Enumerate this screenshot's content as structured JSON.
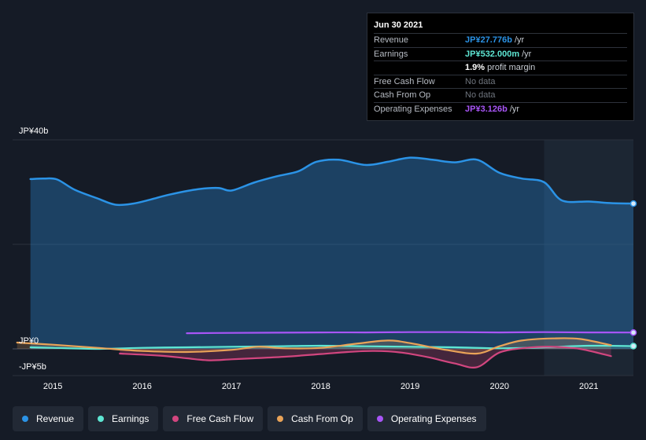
{
  "chart_data": {
    "type": "area",
    "title": "",
    "currency_unit": "JP¥ billions",
    "y_axis_labels": {
      "top": "JP¥40b",
      "zero": "JP¥0",
      "bottom": "-JP¥5b"
    },
    "ylim": [
      -5,
      40
    ],
    "x_tick_labels": [
      "2015",
      "2016",
      "2017",
      "2018",
      "2019",
      "2020",
      "2021"
    ],
    "x_range": [
      2014.55,
      2021.5
    ],
    "forecast_start": 2020.5,
    "series": [
      {
        "name": "Revenue",
        "color": "#2b93e6",
        "x": [
          2014.75,
          2014.9,
          2015.05,
          2015.25,
          2015.5,
          2015.7,
          2015.9,
          2016.1,
          2016.3,
          2016.6,
          2016.85,
          2017.0,
          2017.25,
          2017.5,
          2017.75,
          2017.95,
          2018.2,
          2018.5,
          2018.75,
          2019.0,
          2019.25,
          2019.5,
          2019.75,
          2020.0,
          2020.25,
          2020.5,
          2020.7,
          2021.0,
          2021.25,
          2021.5
        ],
        "values": [
          32.5,
          32.6,
          32.4,
          30.4,
          28.8,
          27.6,
          27.8,
          28.6,
          29.5,
          30.5,
          30.8,
          30.3,
          31.8,
          33.0,
          34.0,
          35.8,
          36.2,
          35.2,
          35.8,
          36.6,
          36.2,
          35.7,
          36.2,
          33.7,
          32.6,
          31.9,
          28.4,
          28.2,
          27.9,
          27.8
        ]
      },
      {
        "name": "Earnings",
        "color": "#5ee6d3",
        "x": [
          2014.75,
          2015.0,
          2015.5,
          2016.0,
          2016.5,
          2017.0,
          2017.5,
          2018.0,
          2018.5,
          2019.0,
          2019.5,
          2020.0,
          2020.5,
          2021.0,
          2021.5
        ],
        "values": [
          0.3,
          0.2,
          0.0,
          0.2,
          0.3,
          0.4,
          0.5,
          0.6,
          0.5,
          0.4,
          0.3,
          0.1,
          0.3,
          0.6,
          0.53
        ]
      },
      {
        "name": "Free Cash Flow",
        "color": "#d2467f",
        "x": [
          2015.75,
          2016.2,
          2016.5,
          2016.75,
          2017.0,
          2017.25,
          2017.6,
          2018.0,
          2018.3,
          2018.6,
          2018.9,
          2019.2,
          2019.5,
          2019.75,
          2020.0,
          2020.3,
          2020.6,
          2020.9,
          2021.25
        ],
        "values": [
          -0.9,
          -1.3,
          -1.8,
          -2.2,
          -2.0,
          -1.8,
          -1.5,
          -1.0,
          -0.6,
          -0.4,
          -0.7,
          -1.6,
          -2.8,
          -3.5,
          -0.7,
          0.2,
          0.4,
          0.0,
          -1.4
        ]
      },
      {
        "name": "Cash From Op",
        "color": "#e9a358",
        "x": [
          2014.6,
          2015.0,
          2015.5,
          2016.0,
          2016.5,
          2017.0,
          2017.3,
          2017.6,
          2018.0,
          2018.4,
          2018.75,
          2019.0,
          2019.4,
          2019.75,
          2020.0,
          2020.25,
          2020.6,
          2020.9,
          2021.25
        ],
        "values": [
          1.2,
          0.8,
          0.2,
          -0.4,
          -0.6,
          -0.2,
          0.4,
          0.1,
          0.2,
          1.0,
          1.6,
          1.1,
          -0.2,
          -0.9,
          0.5,
          1.6,
          2.0,
          1.9,
          0.7
        ]
      },
      {
        "name": "Operating Expenses",
        "color": "#a855f7",
        "x": [
          2016.5,
          2017.0,
          2017.5,
          2018.0,
          2018.5,
          2019.0,
          2019.5,
          2020.0,
          2020.5,
          2021.0,
          2021.5
        ],
        "values": [
          3.0,
          3.05,
          3.1,
          3.15,
          3.15,
          3.2,
          3.2,
          3.15,
          3.2,
          3.15,
          3.126
        ]
      }
    ]
  },
  "tooltip": {
    "date": "Jun 30 2021",
    "rows": {
      "revenue": {
        "label": "Revenue",
        "value": "JP¥27.776b",
        "suffix": "/yr",
        "color": "#2b93e6"
      },
      "earnings": {
        "label": "Earnings",
        "value": "JP¥532.000m",
        "suffix": "/yr",
        "color": "#5ee6d3"
      },
      "margin": {
        "value": "1.9%",
        "suffix": "profit margin"
      },
      "fcf": {
        "label": "Free Cash Flow",
        "value": "No data"
      },
      "cfo": {
        "label": "Cash From Op",
        "value": "No data"
      },
      "opex": {
        "label": "Operating Expenses",
        "value": "JP¥3.126b",
        "suffix": "/yr",
        "color": "#a855f7"
      }
    }
  },
  "legend": [
    {
      "label": "Revenue",
      "color": "#2b93e6"
    },
    {
      "label": "Earnings",
      "color": "#5ee6d3"
    },
    {
      "label": "Free Cash Flow",
      "color": "#d2467f"
    },
    {
      "label": "Cash From Op",
      "color": "#e9a358"
    },
    {
      "label": "Operating Expenses",
      "color": "#a855f7"
    }
  ]
}
